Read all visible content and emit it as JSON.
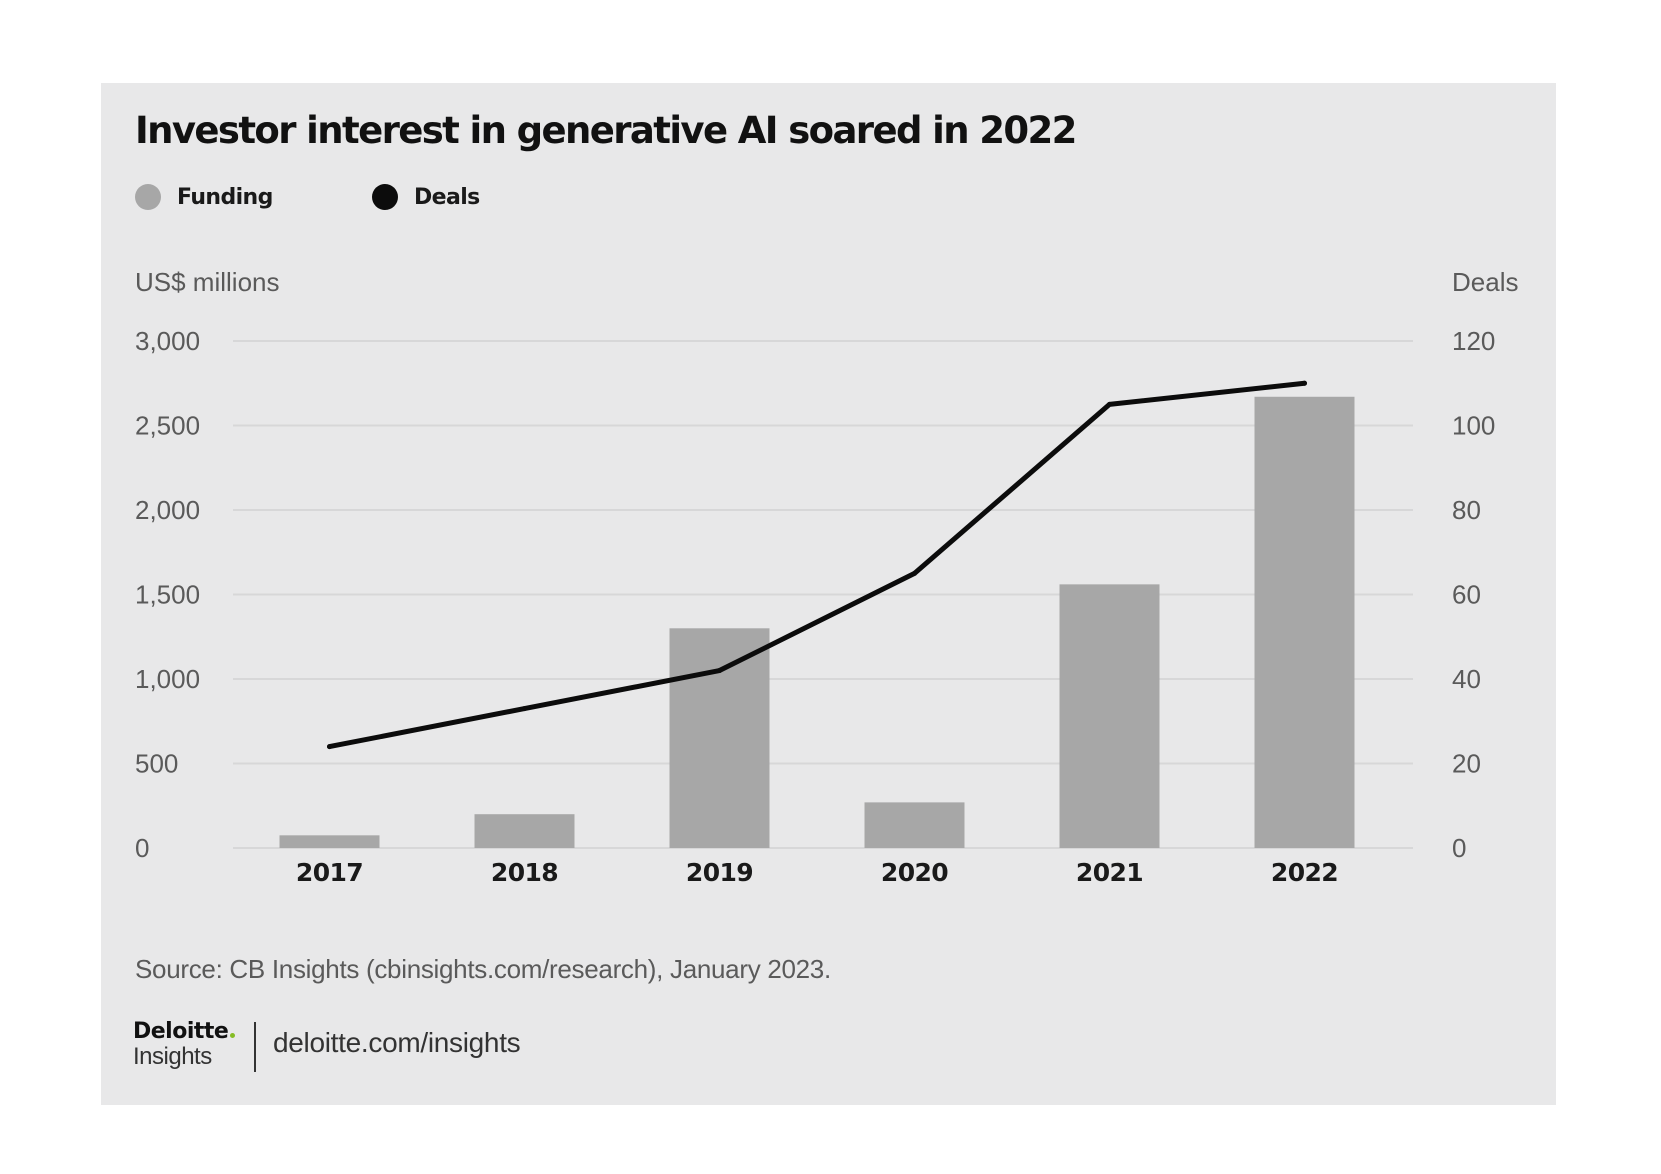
{
  "colors": {
    "background": "#e8e8e9",
    "funding": "#a7a7a7",
    "deals": "#0c0c0c",
    "grid": "#d7d7d8"
  },
  "legend": [
    {
      "label": "Funding",
      "color": "#a7a7a7"
    },
    {
      "label": "Deals",
      "color": "#0c0c0c"
    }
  ],
  "chart_data": {
    "type": "bar",
    "title": "Investor interest in generative AI soared in 2022",
    "categories": [
      "2017",
      "2018",
      "2019",
      "2020",
      "2021",
      "2022"
    ],
    "series": [
      {
        "name": "Funding",
        "type": "bar",
        "axis": "left",
        "values": [
          75,
          200,
          1300,
          270,
          1560,
          2670
        ]
      },
      {
        "name": "Deals",
        "type": "line",
        "axis": "right",
        "values": [
          24,
          33,
          42,
          65,
          105,
          110
        ]
      }
    ],
    "ylabel": "US$ millions",
    "ylim": [
      0,
      3000
    ],
    "yticks": [
      "0",
      "500",
      "1,000",
      "1,500",
      "2,000",
      "2,500",
      "3,000"
    ],
    "y2label": "Deals",
    "y2lim": [
      0,
      120
    ],
    "y2ticks": [
      "0",
      "20",
      "40",
      "60",
      "80",
      "100",
      "120"
    ],
    "grid": true,
    "legend_position": "top-left"
  },
  "footer": {
    "source": "Source: CB Insights (cbinsights.com/research), January 2023.",
    "brand_name": "Deloitte",
    "brand_sub": "Insights",
    "url": "deloitte.com/insights"
  }
}
